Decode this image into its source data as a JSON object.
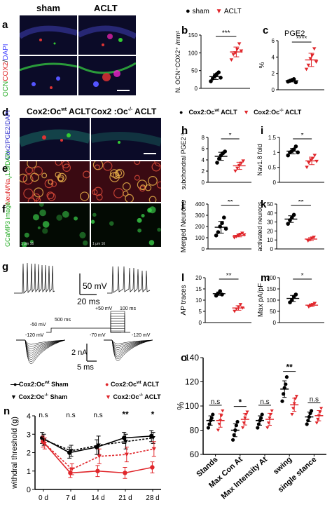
{
  "colors": {
    "sham": "#000000",
    "aclt": "#e0262b",
    "micro_bg": "#0b0b28"
  },
  "panels": {
    "a": {
      "label": "a",
      "col1": "sham",
      "col2": "ACLT",
      "ylabel_parts": [
        "OCN",
        "COX2",
        "DAPI"
      ]
    },
    "b": {
      "label": "b",
      "legend_sham": "sham",
      "legend_aclt": "ACLT"
    },
    "c": {
      "label": "c",
      "title": "PGE2"
    },
    "d": {
      "label": "d",
      "col1": "Cox2:Oc",
      "col1_sup": "wt",
      "col1_suffix": " ACLT",
      "col2": "Cox2 :Oc",
      "col2_sup": "-/-",
      "col2_suffix": " ACLT",
      "ylabel": "Cox2/PGE2/DAPI"
    },
    "e": {
      "label": "e",
      "ylabel": "NeuN/Na",
      "ylabel_sub": "V",
      "ylabel_rest": "1.8/DAPI"
    },
    "f": {
      "label": "f",
      "ylabel": "GCaMP3 image",
      "stamp1": "1 μm 16",
      "stamp2": "1 μm 16"
    },
    "g": {
      "label": "g",
      "scale_mv": "50 mV",
      "scale_ms": "20 ms",
      "step_high": "+50 mV",
      "step_time": "100 ms",
      "step_mid": "500 ms",
      "step_m50": "-50 mV",
      "step_m120a": "-120 mV",
      "step_m70": "-70 mV",
      "step_m120b": "-120 mV",
      "scale_na": "2 nA",
      "scale_ms2": "5 ms"
    },
    "hdr2": {
      "left": "Cox2:Oc",
      "left_sup": "wt",
      "left_suffix": " ACLT",
      "right": "Cox2:Oc",
      "right_sup": "-/-",
      "right_suffix": " ACLT"
    },
    "n": {
      "label": "n",
      "leg1": "Cox2:Oc",
      "leg1_sup": "wt",
      "leg1_suffix": " Sham",
      "leg2": "Cox2:Oc",
      "leg2_sup": "wt",
      "leg2_suffix": " ACLT",
      "leg3": "Cox2:Oc",
      "leg3_sup": "-/-",
      "leg3_suffix": " Sham",
      "leg4": "Cox2:Oc",
      "leg4_sup": "-/-",
      "leg4_suffix": " ACLT"
    },
    "o": {
      "label": "o"
    }
  },
  "chart_data": [
    {
      "id": "b",
      "type": "scatter",
      "ylabel": "N. OCN⁺COX2⁺ /mm²",
      "categories": [
        "sham",
        "ACLT"
      ],
      "sig": "***",
      "ylim": [
        0,
        150
      ],
      "yticks": [
        0,
        50,
        100,
        150
      ],
      "series": [
        {
          "name": "sham",
          "values": [
            20,
            28,
            35,
            40,
            45,
            30
          ]
        },
        {
          "name": "ACLT",
          "values": [
            80,
            95,
            100,
            110,
            125,
            105
          ]
        }
      ],
      "means": [
        33,
        103
      ]
    },
    {
      "id": "c",
      "type": "scatter",
      "title": "PGE2",
      "ylabel": "%",
      "categories": [
        "sham",
        "ACLT"
      ],
      "sig": "****",
      "ylim": [
        0,
        6
      ],
      "yticks": [
        0,
        2,
        4,
        6
      ],
      "series": [
        {
          "name": "sham",
          "values": [
            1.0,
            1.1,
            1.2,
            1.3,
            0.9
          ]
        },
        {
          "name": "ACLT",
          "values": [
            2.5,
            3.0,
            3.8,
            4.2,
            5.0,
            3.4
          ]
        }
      ],
      "means": [
        1.1,
        3.6
      ]
    },
    {
      "id": "h",
      "type": "scatter",
      "ylabel": "subchondral PGE2 %",
      "sig": "*",
      "ylim": [
        0,
        8
      ],
      "yticks": [
        0,
        2,
        4,
        6,
        8
      ],
      "series": [
        {
          "name": "Cox2:Oc wt ACLT",
          "values": [
            3.5,
            4.2,
            4.8,
            5.2,
            5.5
          ]
        },
        {
          "name": "Cox2:Oc -/- ACLT",
          "values": [
            2.0,
            2.5,
            3.0,
            3.4,
            3.8
          ]
        }
      ],
      "means": [
        4.6,
        2.9
      ]
    },
    {
      "id": "i",
      "type": "scatter",
      "ylabel": "Nav1.8 fold",
      "sig": "*",
      "ylim": [
        0.0,
        1.5
      ],
      "yticks": [
        0.0,
        0.5,
        1.0,
        1.5
      ],
      "series": [
        {
          "name": "Cox2:Oc wt ACLT",
          "values": [
            0.9,
            1.0,
            1.05,
            1.1,
            1.2,
            1.0
          ]
        },
        {
          "name": "Cox2:Oc -/- ACLT",
          "values": [
            0.5,
            0.65,
            0.75,
            0.8,
            0.9,
            0.7
          ]
        }
      ],
      "means": [
        1.05,
        0.72
      ]
    },
    {
      "id": "j",
      "type": "scatter",
      "ylabel": "Merged Neurons",
      "sig": "**",
      "ylim": [
        0,
        400
      ],
      "yticks": [
        0,
        100,
        200,
        300,
        400
      ],
      "series": [
        {
          "name": "Cox2:Oc wt ACLT",
          "values": [
            120,
            150,
            200,
            230,
            280,
            180
          ]
        },
        {
          "name": "Cox2:Oc -/- ACLT",
          "values": [
            100,
            110,
            120,
            130,
            140,
            125
          ]
        }
      ],
      "means": [
        195,
        122
      ]
    },
    {
      "id": "k",
      "type": "scatter",
      "ylabel": "activated neurons",
      "sig": "**",
      "ylim": [
        0,
        50
      ],
      "yticks": [
        0,
        10,
        20,
        30,
        40,
        50
      ],
      "series": [
        {
          "name": "Cox2:Oc wt ACLT",
          "values": [
            28,
            32,
            35,
            38
          ]
        },
        {
          "name": "Cox2:Oc -/- ACLT",
          "values": [
            9,
            10,
            12,
            13
          ]
        }
      ],
      "means": [
        33,
        11
      ]
    },
    {
      "id": "l",
      "type": "scatter",
      "ylabel": "AP traces",
      "sig": "**",
      "ylim": [
        0,
        20
      ],
      "yticks": [
        0,
        5,
        10,
        15,
        20
      ],
      "series": [
        {
          "name": "Cox2:Oc wt ACLT",
          "values": [
            12,
            13,
            14,
            12.5
          ]
        },
        {
          "name": "Cox2:Oc -/- ACLT",
          "values": [
            5,
            6,
            7,
            8,
            6.5
          ]
        }
      ],
      "means": [
        12.8,
        6.5
      ]
    },
    {
      "id": "m",
      "type": "scatter",
      "ylabel": "Max pA/pF",
      "sig": "*",
      "ylim": [
        0,
        200
      ],
      "yticks": [
        0,
        50,
        100,
        150,
        200
      ],
      "series": [
        {
          "name": "Cox2:Oc wt ACLT",
          "values": [
            90,
            100,
            115,
            125
          ]
        },
        {
          "name": "Cox2:Oc -/- ACLT",
          "values": [
            70,
            75,
            80,
            85
          ]
        }
      ],
      "means": [
        108,
        78
      ]
    },
    {
      "id": "n",
      "type": "line",
      "ylabel": "withdral threshold (g)",
      "categories": [
        "0 d",
        "7 d",
        "14 d",
        "21 d",
        "28 d"
      ],
      "ylim": [
        0,
        4
      ],
      "yticks": [
        0,
        1,
        2,
        3,
        4
      ],
      "sig": [
        "n.s",
        "n.s",
        "n.s",
        "**",
        "*"
      ],
      "series": [
        {
          "name": "Cox2:Oc wt Sham",
          "values": [
            2.8,
            2.0,
            2.3,
            2.8,
            2.9
          ],
          "errors": [
            0.3,
            0.3,
            0.4,
            0.3,
            0.3
          ]
        },
        {
          "name": "Cox2:Oc wt ACLT",
          "values": [
            2.6,
            0.9,
            1.0,
            0.9,
            1.2
          ],
          "errors": [
            0.3,
            0.25,
            0.3,
            0.3,
            0.3
          ]
        },
        {
          "name": "Cox2:Oc -/- Sham",
          "values": [
            2.7,
            2.1,
            2.4,
            2.6,
            2.8
          ],
          "errors": [
            0.3,
            0.3,
            0.5,
            0.4,
            0.3
          ]
        },
        {
          "name": "Cox2:Oc -/- ACLT",
          "values": [
            2.5,
            1.1,
            1.8,
            1.9,
            2.2
          ],
          "errors": [
            0.3,
            0.3,
            0.4,
            0.4,
            0.4
          ]
        }
      ]
    },
    {
      "id": "o",
      "type": "scatter",
      "ylabel": "%",
      "categories": [
        "Stands",
        "Max Con At",
        "Max Intensity At",
        "swing",
        "single stance"
      ],
      "ylim": [
        60,
        140
      ],
      "yticks": [
        60,
        80,
        100,
        120,
        140
      ],
      "sig": [
        "n.s",
        "*",
        "n.s",
        "**",
        "n.s"
      ],
      "series": [
        {
          "name": "Cox2:Oc wt ACLT",
          "values": [
            [
              82,
              85,
              88,
              90,
              93
            ],
            [
              72,
              76,
              80,
              84,
              87
            ],
            [
              82,
              85,
              88,
              90,
              93
            ],
            [
              104,
              110,
              115,
              118,
              124
            ],
            [
              85,
              88,
              91,
              94,
              96
            ]
          ]
        },
        {
          "name": "Cox2:Oc -/- ACLT",
          "values": [
            [
              80,
              85,
              88,
              92,
              96
            ],
            [
              82,
              86,
              90,
              93,
              95
            ],
            [
              82,
              86,
              90,
              93,
              96
            ],
            [
              93,
              98,
              102,
              106,
              108
            ],
            [
              86,
              89,
              92,
              95,
              98
            ]
          ]
        }
      ],
      "means": [
        [
          88,
          80,
          88,
          114,
          91
        ],
        [
          88,
          89,
          89,
          101,
          92
        ]
      ]
    }
  ]
}
